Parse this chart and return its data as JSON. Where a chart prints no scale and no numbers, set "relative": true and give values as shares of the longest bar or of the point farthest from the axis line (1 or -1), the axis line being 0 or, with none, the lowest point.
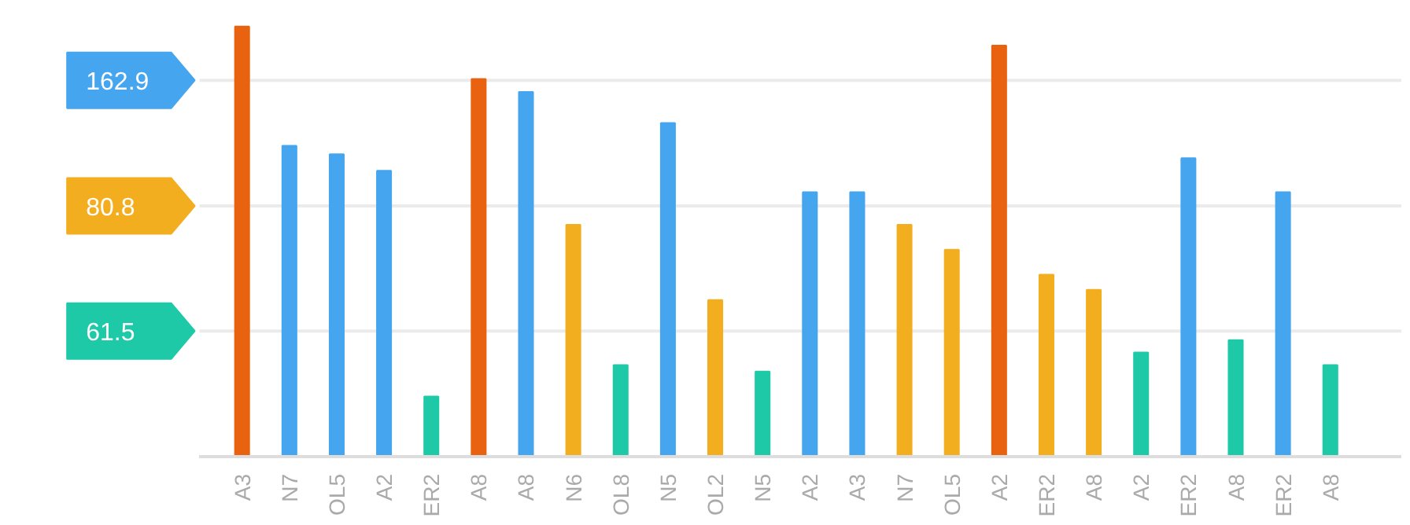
{
  "chart_data": {
    "type": "bar",
    "relative": true,
    "categories": [
      "A3",
      "N7",
      "OL5",
      "A2",
      "ER2",
      "A8",
      "A8",
      "N6",
      "OL8",
      "N5",
      "OL2",
      "N5",
      "A2",
      "A3",
      "N7",
      "OL5",
      "A2",
      "ER2",
      "A8",
      "A2",
      "ER2",
      "A8",
      "ER2",
      "A8"
    ],
    "values": [
      1,
      0.723,
      0.703,
      0.665,
      0.14,
      0.878,
      0.848,
      0.539,
      0.213,
      0.776,
      0.364,
      0.198,
      0.615,
      0.615,
      0.539,
      0.481,
      0.956,
      0.423,
      0.388,
      0.242,
      0.694,
      0.271,
      0.615,
      0.213
    ],
    "colors": [
      "#e8620f",
      "#45a5ef",
      "#45a5ef",
      "#45a5ef",
      "#1ec9a8",
      "#e8620f",
      "#45a5ef",
      "#f3ae1f",
      "#1ec9a8",
      "#45a5ef",
      "#f3ae1f",
      "#1ec9a8",
      "#45a5ef",
      "#45a5ef",
      "#f3ae1f",
      "#f3ae1f",
      "#e8620f",
      "#f3ae1f",
      "#f3ae1f",
      "#1ec9a8",
      "#45a5ef",
      "#1ec9a8",
      "#45a5ef",
      "#1ec9a8"
    ],
    "ref_lines": [
      {
        "axis": "y",
        "value": 0.875,
        "color": "#ebebeb"
      },
      {
        "axis": "y",
        "value": 0.583,
        "color": "#ebebeb"
      },
      {
        "axis": "y",
        "value": 0.292,
        "color": "#ebebeb"
      }
    ],
    "annotations": [
      "162.9",
      "80.8",
      "61.5"
    ]
  }
}
